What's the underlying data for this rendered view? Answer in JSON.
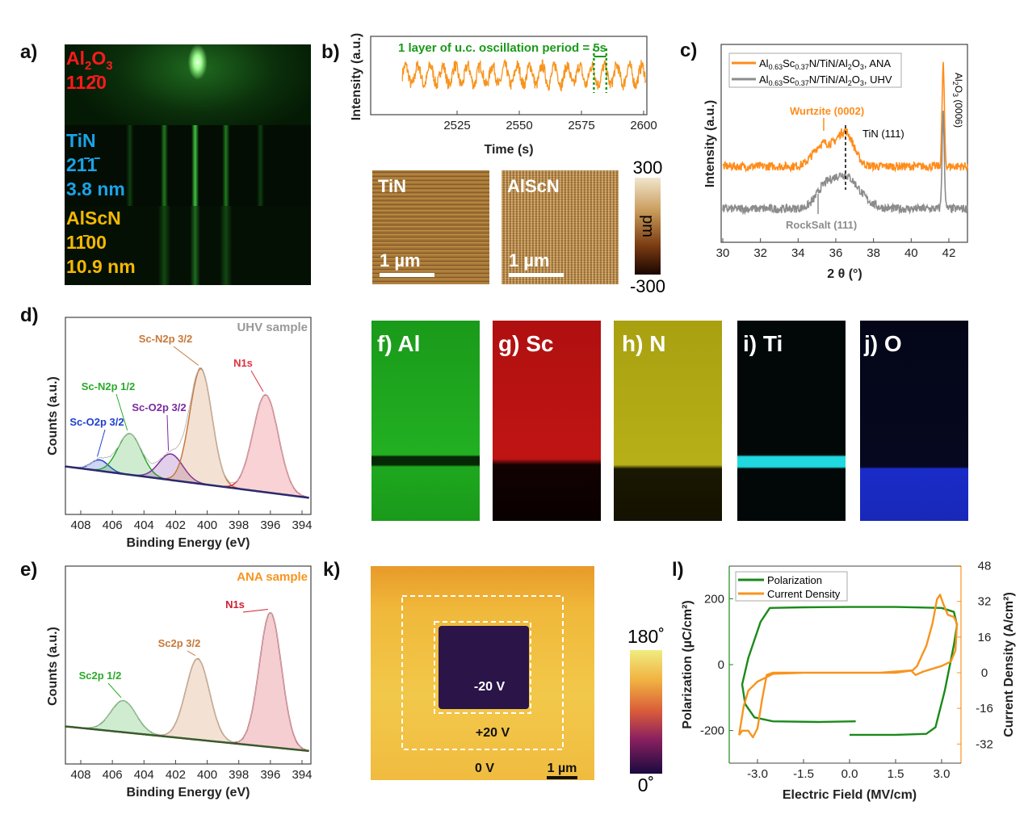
{
  "panel_labels": {
    "a": "a)",
    "b": "b)",
    "c": "c)",
    "d": "d)",
    "e": "e)",
    "k": "k)",
    "l": "l)"
  },
  "rheed": {
    "layers": [
      {
        "name_parts": [
          "Al",
          "2",
          "O",
          "3"
        ],
        "direction": "112̄0",
        "color": "#ff1a1a"
      },
      {
        "name": "TiN",
        "direction": "21̄1̄",
        "thickness": "3.8 nm",
        "color": "#1aa3e8"
      },
      {
        "name": "AlScN",
        "direction": "11̄00",
        "thickness": "10.9 nm",
        "color": "#f5b800"
      }
    ]
  },
  "afm": {
    "images": [
      {
        "label": "TiN",
        "scale": "1 µm"
      },
      {
        "label": "AlScN",
        "scale": "1 µm"
      }
    ],
    "colorbar": {
      "max": "300",
      "min": "-300",
      "unit": "pm"
    }
  },
  "eds_maps": [
    {
      "label": "f) Al",
      "color": "#22c422"
    },
    {
      "label": "g) Sc",
      "color": "#d01010"
    },
    {
      "label": "h) N",
      "color": "#d8d010"
    },
    {
      "label": "i) Ti",
      "color": "#20e0e8"
    },
    {
      "label": "j) O",
      "color": "#2030e0"
    }
  ],
  "pfm": {
    "inner_label": "-20 V",
    "outer_label": "+20 V",
    "outside_label": "0 V",
    "scale": "1 µm",
    "colorbar": {
      "max": "180˚",
      "min": "0˚"
    }
  },
  "chart_data": [
    {
      "type": "line",
      "panel": "b",
      "xlabel": "Time (s)",
      "ylabel": "Intensity (a.u.)",
      "xlim": [
        2503,
        2601
      ],
      "xticks": [
        "2525",
        "2550",
        "2575",
        "2600"
      ],
      "xtick_values": [
        2525,
        2550,
        2575,
        2600
      ],
      "annotation": "1 layer of u.c. oscillation period = 5s",
      "period_s": 5,
      "color": "#f7941d"
    },
    {
      "type": "line",
      "panel": "c",
      "xlabel": "2 θ (°)",
      "ylabel": "Intensity (a.u.)",
      "xlim": [
        30,
        43
      ],
      "xticks": [
        "30",
        "32",
        "34",
        "36",
        "38",
        "40",
        "42"
      ],
      "xtick_values": [
        30,
        32,
        34,
        36,
        38,
        40,
        42
      ],
      "series": [
        {
          "name_parts": [
            "Al",
            "0.63",
            "Sc",
            "0.37",
            "N/TiN/Al",
            "2",
            "O",
            "3",
            ", ANA"
          ],
          "color": "#ff8c1a",
          "baseline": 40,
          "peaks": [
            {
              "center": 35.3,
              "height": 13,
              "width": 0.5
            },
            {
              "center": 36.5,
              "height": 20,
              "width": 0.45
            },
            {
              "center": 41.7,
              "height": 60,
              "width": 0.06
            }
          ]
        },
        {
          "name_parts": [
            "Al",
            "0.63",
            "Sc",
            "0.37",
            "N/TiN/Al",
            "2",
            "O",
            "3",
            ", UHV"
          ],
          "color": "#8c8c8c",
          "baseline": 15,
          "peaks": [
            {
              "center": 35.3,
              "height": 6,
              "width": 0.4
            },
            {
              "center": 36.4,
              "height": 20,
              "width": 0.8
            },
            {
              "center": 41.7,
              "height": 56,
              "width": 0.06
            }
          ]
        }
      ],
      "annotations": {
        "wurtzite": "Wurtzite (0002)",
        "tin": "TiN (111)",
        "rocksalt": "RockSalt (111)",
        "sapphire_parts": [
          "Al",
          "2",
          "O",
          "3",
          " (0006)"
        ]
      },
      "legend": "top-left"
    },
    {
      "type": "area",
      "panel": "d",
      "title": "UHV sample",
      "xlabel": "Binding Energy (eV)",
      "ylabel": "Counts (a.u.)",
      "xlim": [
        409,
        393.5
      ],
      "xticks": [
        "408",
        "406",
        "404",
        "402",
        "400",
        "398",
        "396",
        "394"
      ],
      "xtick_values": [
        408,
        406,
        404,
        402,
        400,
        398,
        396,
        394
      ],
      "background": [
        [
          409,
          0.25
        ],
        [
          393.5,
          0.02
        ]
      ],
      "peaks": [
        {
          "name": "Sc-O2p 3/2",
          "center": 406.8,
          "height": 0.08,
          "width": 0.55,
          "color": "#2040d0"
        },
        {
          "name": "Sc-N2p 1/2",
          "center": 404.9,
          "height": 0.3,
          "width": 0.75,
          "color": "#2aaa2a"
        },
        {
          "name": "Sc-O2p 3/2",
          "center": 402.3,
          "height": 0.19,
          "width": 0.75,
          "color": "#7a2aa0"
        },
        {
          "name": "Sc-N2p 3/2",
          "center": 400.4,
          "height": 0.84,
          "width": 0.7,
          "color": "#c8783a"
        },
        {
          "name": "N1s",
          "center": 396.3,
          "height": 0.71,
          "width": 0.8,
          "color": "#e03040"
        }
      ]
    },
    {
      "type": "area",
      "panel": "e",
      "title": "ANA sample",
      "xlabel": "Binding Energy (eV)",
      "ylabel": "Counts (a.u.)",
      "xlim": [
        409,
        393.5
      ],
      "xticks": [
        "408",
        "406",
        "404",
        "402",
        "400",
        "398",
        "396",
        "394"
      ],
      "xtick_values": [
        408,
        406,
        404,
        402,
        400,
        398,
        396,
        394
      ],
      "background": [
        [
          409,
          0.18
        ],
        [
          393.5,
          0.0
        ]
      ],
      "peaks": [
        {
          "name": "Sc2p 1/2",
          "center": 405.3,
          "height": 0.23,
          "width": 0.8,
          "color": "#2aaa2a"
        },
        {
          "name": "Sc2p 3/2",
          "center": 400.6,
          "height": 0.59,
          "width": 0.75,
          "color": "#c8783a"
        },
        {
          "name": "N1s",
          "center": 396.0,
          "height": 0.98,
          "width": 0.7,
          "color": "#d02030"
        }
      ]
    },
    {
      "type": "line",
      "panel": "l",
      "xlabel": "Electric Field (MV/cm)",
      "ylabel": "Polarization (µC/cm²)",
      "y2label": "Current Density (A/cm²)",
      "xlim": [
        -3.8,
        3.9
      ],
      "ylim": [
        -300,
        290
      ],
      "y2lim": [
        -40,
        48
      ],
      "xticks": [
        "-3.0",
        "-1.5",
        "0.0",
        "1.5",
        "3.0"
      ],
      "xtick_values": [
        -3,
        -1.5,
        0,
        1.5,
        3
      ],
      "yticks": [
        "200",
        "0",
        "-200"
      ],
      "ytick_values": [
        200,
        0,
        -200
      ],
      "y2ticks": [
        "48",
        "32",
        "16",
        "0",
        "-16",
        "-32"
      ],
      "y2tick_values": [
        48,
        32,
        16,
        0,
        -16,
        -32
      ],
      "legend": "top-left",
      "series": [
        {
          "name": "Polarization",
          "axis": "left",
          "color": "#1a8a1a",
          "points": [
            [
              0,
              -213
            ],
            [
              1.5,
              -213
            ],
            [
              2.5,
              -210
            ],
            [
              2.8,
              -190
            ],
            [
              3.1,
              -80
            ],
            [
              3.4,
              60
            ],
            [
              3.5,
              120
            ],
            [
              3.4,
              160
            ],
            [
              3.0,
              172
            ],
            [
              1.5,
              175
            ],
            [
              0,
              175
            ],
            [
              -1.5,
              174
            ],
            [
              -2.6,
              172
            ],
            [
              -2.9,
              130
            ],
            [
              -3.3,
              20
            ],
            [
              -3.5,
              -60
            ],
            [
              -3.4,
              -120
            ],
            [
              -3.1,
              -160
            ],
            [
              -2.5,
              -172
            ],
            [
              -1,
              -174
            ],
            [
              0.2,
              -172
            ]
          ]
        },
        {
          "name": "Current Density",
          "axis": "right",
          "color": "#f7941d",
          "points": [
            [
              -3.6,
              -28
            ],
            [
              -3.45,
              -15
            ],
            [
              -3.3,
              -8
            ],
            [
              -3.0,
              -4
            ],
            [
              -2.7,
              -2
            ],
            [
              -2.5,
              -0.5
            ],
            [
              -1.5,
              0
            ],
            [
              0,
              0
            ],
            [
              1.5,
              0
            ],
            [
              2.05,
              1
            ],
            [
              2.2,
              3
            ],
            [
              2.5,
              12
            ],
            [
              2.7,
              22
            ],
            [
              2.85,
              33
            ],
            [
              2.95,
              35
            ],
            [
              3.05,
              31
            ],
            [
              3.2,
              26
            ],
            [
              3.4,
              25
            ],
            [
              3.5,
              22
            ],
            [
              3.45,
              10
            ],
            [
              3.3,
              5
            ],
            [
              3.0,
              3
            ],
            [
              2.4,
              0.5
            ],
            [
              2.15,
              -1
            ],
            [
              2.0,
              1
            ],
            [
              1.0,
              0
            ],
            [
              0,
              0
            ],
            [
              -1.5,
              0
            ],
            [
              -2.5,
              0
            ],
            [
              -2.7,
              -1
            ],
            [
              -2.85,
              -12
            ],
            [
              -3.0,
              -25
            ],
            [
              -3.15,
              -29
            ],
            [
              -3.3,
              -26
            ],
            [
              -3.5,
              -26
            ],
            [
              -3.6,
              -28
            ]
          ]
        }
      ]
    }
  ]
}
